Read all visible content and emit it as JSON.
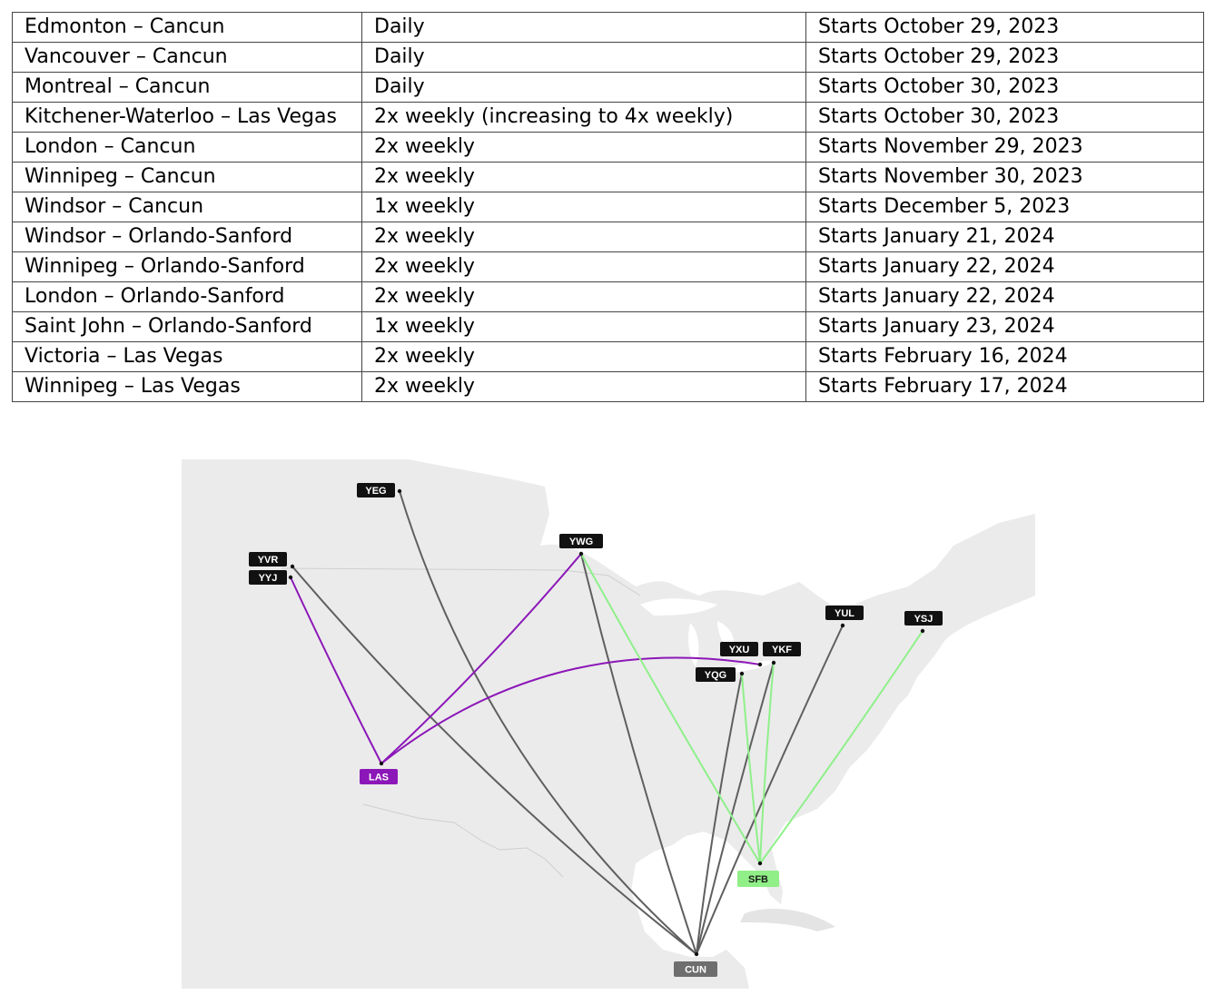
{
  "table": {
    "rows": [
      {
        "route": "Edmonton – Cancun",
        "frequency": "Daily",
        "start": "Starts October 29, 2023"
      },
      {
        "route": "Vancouver – Cancun",
        "frequency": "Daily",
        "start": "Starts October 29, 2023"
      },
      {
        "route": "Montreal – Cancun",
        "frequency": "Daily",
        "start": "Starts October 30, 2023"
      },
      {
        "route": "Kitchener-Waterloo – Las Vegas",
        "frequency": "2x weekly (increasing to 4x weekly)",
        "start": "Starts October 30, 2023"
      },
      {
        "route": "London – Cancun",
        "frequency": "2x weekly",
        "start": "Starts November 29, 2023"
      },
      {
        "route": "Winnipeg – Cancun",
        "frequency": "2x weekly",
        "start": "Starts November 30, 2023"
      },
      {
        "route": "Windsor – Cancun",
        "frequency": "1x weekly",
        "start": "Starts December 5, 2023"
      },
      {
        "route": "Windsor – Orlando-Sanford",
        "frequency": "2x weekly",
        "start": "Starts January 21, 2024"
      },
      {
        "route": "Winnipeg – Orlando-Sanford",
        "frequency": "2x weekly",
        "start": "Starts January 22, 2024"
      },
      {
        "route": "London – Orlando-Sanford",
        "frequency": "2x weekly",
        "start": "Starts January 22, 2024"
      },
      {
        "route": "Saint John – Orlando-Sanford",
        "frequency": "1x weekly",
        "start": "Starts January 23, 2024"
      },
      {
        "route": "Victoria – Las Vegas",
        "frequency": "2x weekly",
        "start": "Starts February 16, 2024"
      },
      {
        "route": "Winnipeg – Las Vegas",
        "frequency": "2x weekly",
        "start": "Starts February 17, 2024"
      }
    ]
  },
  "map": {
    "colors": {
      "land": "#ebebeb",
      "water": "#ffffff",
      "border": "#cfcfcf",
      "label_dark": "#111111",
      "cancun": "#6e6e6e",
      "las_vegas": "#8c17b8",
      "orlando": "#90ef87",
      "route_cancun": "#5f5f5f",
      "route_las_vegas": "#8c17b8",
      "route_orlando": "#8ff08a"
    },
    "airports": [
      {
        "code": "YEG"
      },
      {
        "code": "YVR"
      },
      {
        "code": "YYJ"
      },
      {
        "code": "YWG"
      },
      {
        "code": "YUL"
      },
      {
        "code": "YSJ"
      },
      {
        "code": "YXU"
      },
      {
        "code": "YKF"
      },
      {
        "code": "YQG"
      },
      {
        "code": "LAS"
      },
      {
        "code": "SFB"
      },
      {
        "code": "CUN"
      }
    ]
  }
}
